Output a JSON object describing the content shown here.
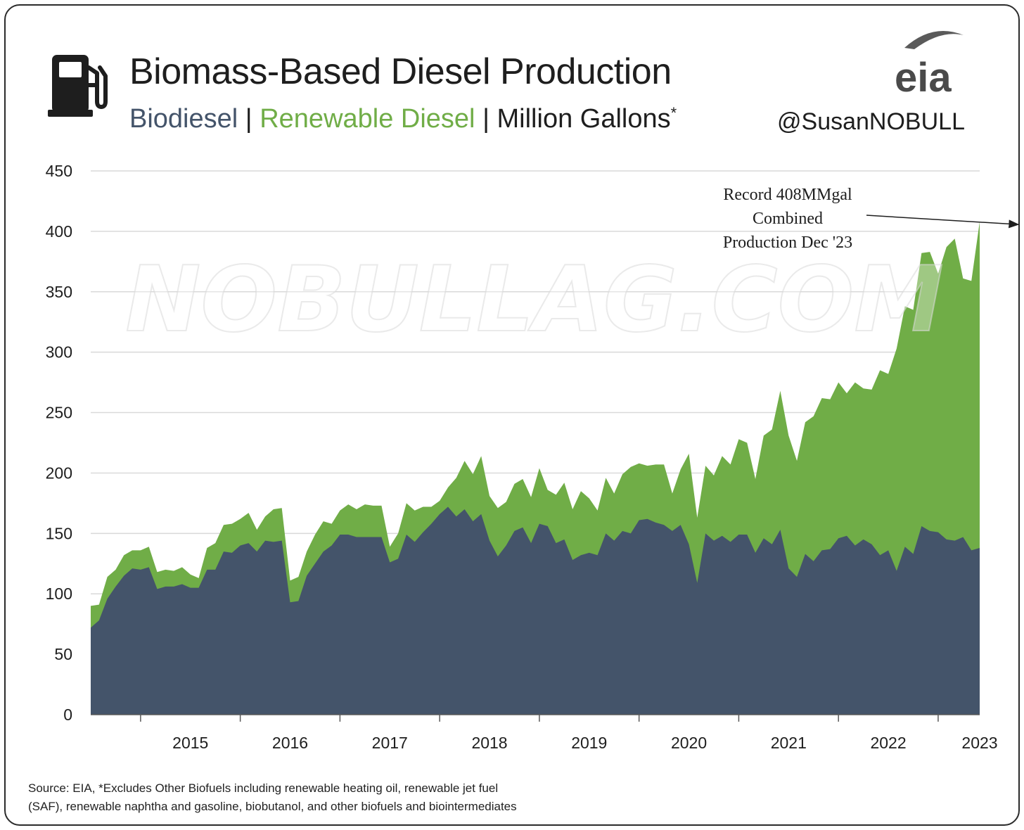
{
  "header": {
    "title": "Biomass-Based Diesel Production",
    "subtitle_biodiesel": "Biodiesel",
    "subtitle_renewable": "Renewable Diesel",
    "subtitle_units": "Million Gallons",
    "subtitle_separator": "|",
    "subtitle_asterisk": "*",
    "handle": "@SusanNOBULL",
    "logo_text": "eia",
    "watermark": "NOBULLAG.COM",
    "icon": "fuel-pump-icon"
  },
  "footer": {
    "source_line1": "Source: EIA, *Excludes Other Biofuels including renewable heating oil, renewable jet fuel",
    "source_line2": "(SAF), renewable naphtha and gasoline, biobutanol, and other biofuels and biointermediates"
  },
  "colors": {
    "biodiesel": "#44546a",
    "renewable_diesel": "#70ad47",
    "grid": "#d9d9d9",
    "text": "#1e1e1e"
  },
  "chart_data": {
    "type": "area",
    "stacked": true,
    "title": "Biomass-Based Diesel Production",
    "ylabel": "",
    "xlabel": "",
    "ylim": [
      0,
      450
    ],
    "yticks": [
      0,
      50,
      100,
      150,
      200,
      250,
      300,
      350,
      400,
      450
    ],
    "grid": "horizontal",
    "x_start": "2014-07",
    "x_end": "2023-12",
    "xtick_labels": [
      "2015",
      "2016",
      "2017",
      "2018",
      "2019",
      "2020",
      "2021",
      "2022",
      "2023"
    ],
    "series": [
      {
        "name": "Biodiesel",
        "values": [
          72,
          78,
          96,
          106,
          115,
          121,
          120,
          122,
          104,
          106,
          106,
          108,
          105,
          105,
          120,
          120,
          135,
          134,
          140,
          142,
          135,
          144,
          143,
          144,
          93,
          94,
          115,
          125,
          135,
          140,
          149,
          149,
          147,
          147,
          147,
          147,
          126,
          129,
          149,
          143,
          151,
          158,
          166,
          172,
          164,
          170,
          160,
          166,
          144,
          131,
          140,
          152,
          155,
          142,
          158,
          156,
          142,
          145,
          128,
          132,
          134,
          132,
          150,
          144,
          152,
          150,
          161,
          162,
          159,
          157,
          152,
          157,
          141,
          109,
          150,
          144,
          148,
          143,
          149,
          149,
          134,
          146,
          141,
          153,
          121,
          114,
          133,
          127,
          136,
          137,
          146,
          148,
          140,
          145,
          141,
          132,
          136,
          119,
          139,
          133,
          156,
          152,
          151,
          145,
          144,
          147,
          136,
          138
        ]
      },
      {
        "name": "Renewable Diesel",
        "values": [
          18,
          13,
          18,
          14,
          17,
          15,
          16,
          17,
          14,
          14,
          13,
          14,
          11,
          8,
          18,
          22,
          22,
          24,
          22,
          25,
          18,
          20,
          27,
          27,
          18,
          20,
          20,
          24,
          25,
          18,
          20,
          25,
          23,
          27,
          26,
          26,
          13,
          21,
          26,
          26,
          21,
          14,
          11,
          16,
          32,
          40,
          39,
          48,
          37,
          40,
          36,
          39,
          40,
          38,
          46,
          30,
          40,
          47,
          42,
          53,
          45,
          37,
          46,
          39,
          47,
          55,
          47,
          44,
          48,
          50,
          31,
          46,
          75,
          54,
          56,
          54,
          66,
          64,
          79,
          76,
          61,
          85,
          95,
          115,
          110,
          96,
          109,
          120,
          126,
          124,
          129,
          118,
          135,
          125,
          128,
          153,
          146,
          184,
          199,
          202,
          226,
          231,
          214,
          242,
          250,
          214,
          223,
          270
        ]
      }
    ],
    "annotations": [
      {
        "lines": [
          "Record 408MMgal",
          "Combined",
          "Production Dec '23"
        ],
        "target_x": "2023-12",
        "target_y": 408
      }
    ]
  }
}
